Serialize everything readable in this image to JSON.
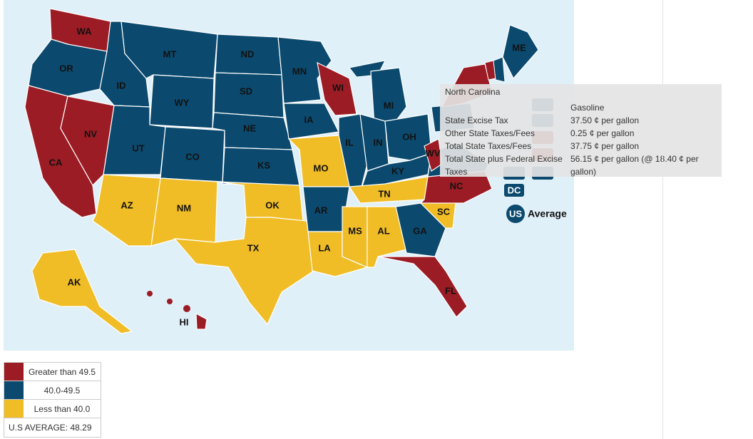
{
  "map": {
    "states": [
      {
        "abbr": "WA",
        "color": "#9b1c24"
      },
      {
        "abbr": "OR",
        "color": "#0b4a6e"
      },
      {
        "abbr": "CA",
        "color": "#9b1c24"
      },
      {
        "abbr": "NV",
        "color": "#9b1c24"
      },
      {
        "abbr": "ID",
        "color": "#0b4a6e"
      },
      {
        "abbr": "MT",
        "color": "#0b4a6e"
      },
      {
        "abbr": "WY",
        "color": "#0b4a6e"
      },
      {
        "abbr": "UT",
        "color": "#0b4a6e"
      },
      {
        "abbr": "CO",
        "color": "#0b4a6e"
      },
      {
        "abbr": "AZ",
        "color": "#f0bd26"
      },
      {
        "abbr": "NM",
        "color": "#f0bd26"
      },
      {
        "abbr": "ND",
        "color": "#0b4a6e"
      },
      {
        "abbr": "SD",
        "color": "#0b4a6e"
      },
      {
        "abbr": "NE",
        "color": "#0b4a6e"
      },
      {
        "abbr": "KS",
        "color": "#0b4a6e"
      },
      {
        "abbr": "OK",
        "color": "#f0bd26"
      },
      {
        "abbr": "TX",
        "color": "#f0bd26"
      },
      {
        "abbr": "MN",
        "color": "#0b4a6e"
      },
      {
        "abbr": "IA",
        "color": "#0b4a6e"
      },
      {
        "abbr": "MO",
        "color": "#f0bd26"
      },
      {
        "abbr": "AR",
        "color": "#0b4a6e"
      },
      {
        "abbr": "LA",
        "color": "#f0bd26"
      },
      {
        "abbr": "WI",
        "color": "#9b1c24"
      },
      {
        "abbr": "IL",
        "color": "#0b4a6e"
      },
      {
        "abbr": "MI",
        "color": "#0b4a6e"
      },
      {
        "abbr": "IN",
        "color": "#0b4a6e"
      },
      {
        "abbr": "OH",
        "color": "#0b4a6e"
      },
      {
        "abbr": "KY",
        "color": "#0b4a6e"
      },
      {
        "abbr": "TN",
        "color": "#f0bd26"
      },
      {
        "abbr": "MS",
        "color": "#f0bd26"
      },
      {
        "abbr": "AL",
        "color": "#f0bd26"
      },
      {
        "abbr": "GA",
        "color": "#0b4a6e"
      },
      {
        "abbr": "FL",
        "color": "#9b1c24"
      },
      {
        "abbr": "SC",
        "color": "#f0bd26"
      },
      {
        "abbr": "NC",
        "color": "#9b1c24"
      },
      {
        "abbr": "WV",
        "color": "#9b1c24"
      },
      {
        "abbr": "ME",
        "color": "#0b4a6e"
      },
      {
        "abbr": "AK",
        "color": "#f0bd26"
      },
      {
        "abbr": "HI",
        "color": "#9b1c24"
      }
    ],
    "dc": {
      "abbr": "DC",
      "color": "#0b4a6e"
    },
    "us": {
      "abbr": "US",
      "label": "Average",
      "color": "#0b4a6e"
    }
  },
  "tooltip": {
    "title": "North Carolina",
    "header": "Gasoline",
    "rows": [
      {
        "label": "State Excise Tax",
        "value": "37.50 ¢ per gallon"
      },
      {
        "label": "Other State Taxes/Fees",
        "value": "0.25 ¢ per gallon"
      },
      {
        "label": "Total State Taxes/Fees",
        "value": "37.75 ¢ per gallon"
      },
      {
        "label": "Total State plus Federal Excise Taxes",
        "value": "56.15 ¢ per gallon (@ 18.40 ¢ per gallon)"
      }
    ]
  },
  "legend": {
    "items": [
      {
        "label": "Greater than 49.5",
        "color": "#9b1c24"
      },
      {
        "label": "40.0-49.5",
        "color": "#0b4a6e"
      },
      {
        "label": "Less than 40.0",
        "color": "#f0bd26"
      }
    ],
    "average": "U.S AVERAGE: 48.29"
  }
}
